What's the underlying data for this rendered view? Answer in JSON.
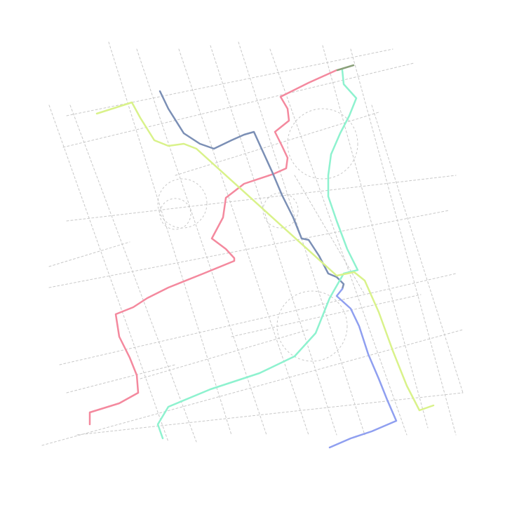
{
  "map": {
    "background": "#ffffff",
    "street_color": "#c8c8c8",
    "routes": [
      {
        "id": "pink-route",
        "color": "#f4899e"
      },
      {
        "id": "blue-grey-route",
        "color": "#7b8fb5"
      },
      {
        "id": "blue-route",
        "color": "#8f9ff0"
      },
      {
        "id": "aqua-route",
        "color": "#8ef2cf"
      },
      {
        "id": "lime-route",
        "color": "#d9f28a"
      },
      {
        "id": "olive-route",
        "color": "#8aa07a"
      }
    ]
  }
}
